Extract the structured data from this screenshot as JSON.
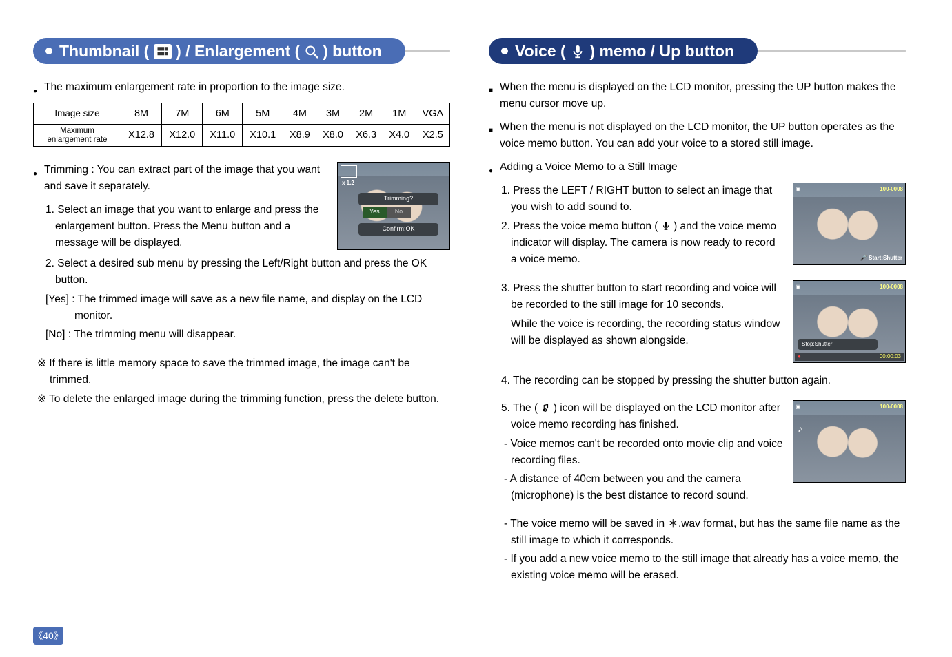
{
  "pageNumber": "《40》",
  "left": {
    "title_parts": [
      "Thumbnail (",
      ") / Enlargement (",
      ") button"
    ],
    "intro": "The maximum enlargement rate in proportion to the image size.",
    "table": {
      "headers": [
        "Image size",
        "8M",
        "7M",
        "6M",
        "5M",
        "4M",
        "3M",
        "2M",
        "1M",
        "VGA"
      ],
      "row_label": "Maximum enlargement rate",
      "row": [
        "X12.8",
        "X12.0",
        "X11.0",
        "X10.1",
        "X8.9",
        "X8.0",
        "X6.3",
        "X4.0",
        "X2.5"
      ]
    },
    "trimming_intro": "Trimming : You can extract part of the image that you want and save it separately.",
    "step1": "1. Select an image that you want to enlarge and press the enlargement button. Press the Menu button and a message will be displayed.",
    "step2": "2. Select a desired sub menu by pressing the Left/Right button and press the OK button.",
    "yes": "[Yes]    : The trimmed image will save as a new file name, and display on the LCD monitor.",
    "no": "[No]     : The trimming menu will disappear.",
    "note1": "※ If there is little memory space to save the trimmed image, the image can't be trimmed.",
    "note2": "※ To delete the enlarged image during the trimming function, press the delete button.",
    "thumb": {
      "zoom": "x 1.2",
      "trimq": "Trimming?",
      "yes": "Yes",
      "no": "No",
      "confirm": "Confirm:OK"
    }
  },
  "right": {
    "title_parts": [
      "Voice (",
      ") memo / Up button"
    ],
    "p1": "When the menu is displayed on the LCD monitor, pressing the UP button makes the menu cursor move up.",
    "p2": "When the menu is not displayed on the LCD monitor, the UP button operates as the voice memo button. You can add your voice to a stored still image.",
    "adding": "Adding a Voice Memo to a Still Image",
    "s1": "1. Press the LEFT / RIGHT button to select an image that you wish to add sound to.",
    "s2a": "2. Press the voice memo button (",
    "s2b": ") and the voice memo indicator will display. The camera is now ready to record a voice memo.",
    "s3": "3. Press the shutter button to start recording and voice will be recorded to the still image for 10 seconds.",
    "s3b": "While the voice is recording, the recording status window will be displayed as shown alongside.",
    "s4": "4. The recording can be stopped by pressing the shutter button again.",
    "s5a": "5. The (",
    "s5b": ") icon will be displayed on the LCD monitor after voice memo recording has finished.",
    "d1": "- Voice memos can't be recorded onto movie clip and voice recording files.",
    "d2": "- A distance of 40cm between you and the camera (microphone) is the best distance to record sound.",
    "d3": "- The voice memo will be saved in ＊.wav format, but has the same file name as the still image to which it corresponds.",
    "d4": "- If you add a new voice memo to the still image that already has a voice memo, the existing voice memo will be erased.",
    "thumbs": {
      "id": "100-0008",
      "start": "Start:Shutter",
      "stop": "Stop:Shutter",
      "time": "00:00:03"
    }
  }
}
